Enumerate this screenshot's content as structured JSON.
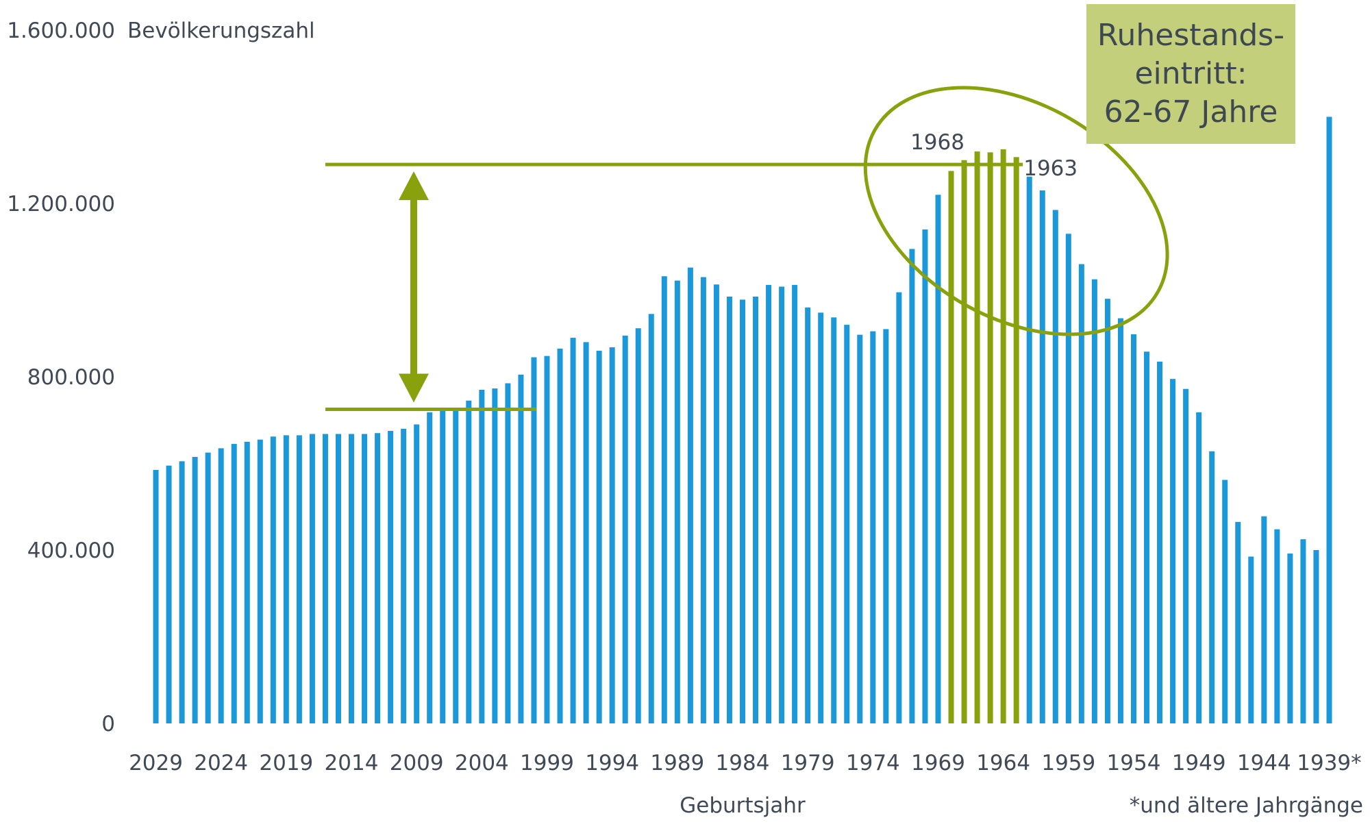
{
  "chart_data": {
    "type": "bar",
    "ylabel": "Bevölkerungszahl",
    "xlabel": "Geburtsjahr",
    "footnote": "*und ältere Jahrgänge",
    "ylim": [
      0,
      1600000
    ],
    "yticks": [
      "0",
      "400.000",
      "800.000",
      "1.200.000",
      "1.600.000"
    ],
    "ytick_values": [
      0,
      400000,
      800000,
      1200000,
      1600000
    ],
    "xtick_labels": [
      "2029",
      "2024",
      "2019",
      "2014",
      "2009",
      "2004",
      "1999",
      "1994",
      "1989",
      "1984",
      "1979",
      "1974",
      "1969",
      "1964",
      "1959",
      "1954",
      "1949",
      "1944",
      "1939*"
    ],
    "categories": [
      "2029",
      "2028",
      "2027",
      "2026",
      "2025",
      "2024",
      "2023",
      "2022",
      "2021",
      "2020",
      "2019",
      "2018",
      "2017",
      "2016",
      "2015",
      "2014",
      "2013",
      "2012",
      "2011",
      "2010",
      "2009",
      "2008",
      "2007",
      "2006",
      "2005",
      "2004",
      "2003",
      "2002",
      "2001",
      "2000",
      "1999",
      "1998",
      "1997",
      "1996",
      "1995",
      "1994",
      "1993",
      "1992",
      "1991",
      "1990",
      "1989",
      "1988",
      "1987",
      "1986",
      "1985",
      "1984",
      "1983",
      "1982",
      "1981",
      "1980",
      "1979",
      "1978",
      "1977",
      "1976",
      "1975",
      "1974",
      "1973",
      "1972",
      "1971",
      "1970",
      "1969",
      "1968",
      "1967",
      "1966",
      "1965",
      "1964",
      "1963",
      "1962",
      "1961",
      "1960",
      "1959",
      "1958",
      "1957",
      "1956",
      "1955",
      "1954",
      "1953",
      "1952",
      "1951",
      "1950",
      "1949",
      "1948",
      "1947",
      "1946",
      "1945",
      "1944",
      "1943",
      "1942",
      "1941",
      "1940",
      "1939*"
    ],
    "values": [
      585000,
      595000,
      605000,
      615000,
      625000,
      635000,
      645000,
      650000,
      655000,
      662000,
      665000,
      665000,
      668000,
      668000,
      668000,
      668000,
      668000,
      670000,
      675000,
      680000,
      690000,
      718000,
      722000,
      724000,
      745000,
      770000,
      773000,
      785000,
      805000,
      845000,
      848000,
      865000,
      890000,
      880000,
      860000,
      868000,
      895000,
      912000,
      945000,
      1032000,
      1022000,
      1052000,
      1030000,
      1013000,
      985000,
      978000,
      985000,
      1012000,
      1008000,
      1012000,
      960000,
      948000,
      937000,
      920000,
      897000,
      905000,
      910000,
      995000,
      1095000,
      1140000,
      1220000,
      1275000,
      1300000,
      1320000,
      1318000,
      1325000,
      1307000,
      1262000,
      1230000,
      1185000,
      1130000,
      1060000,
      1025000,
      980000,
      935000,
      898000,
      858000,
      835000,
      795000,
      772000,
      718000,
      628000,
      562000,
      465000,
      385000,
      478000,
      448000,
      392000,
      425000,
      400000,
      1400000
    ],
    "highlight_from": "1968",
    "highlight_to": "1963",
    "annotations": [
      {
        "text": "1968",
        "category": "1968"
      },
      {
        "text": "1963",
        "category": "1963"
      }
    ],
    "reference_lines": [
      1290000,
      725000
    ],
    "callout": "Ruhestands-\neintritt:\n62-67 Jahre",
    "colors": {
      "bars": "#1a98d9",
      "highlight": "#8aa10e",
      "callout_bg": "#c3cf7a",
      "text": "#404a56"
    }
  }
}
